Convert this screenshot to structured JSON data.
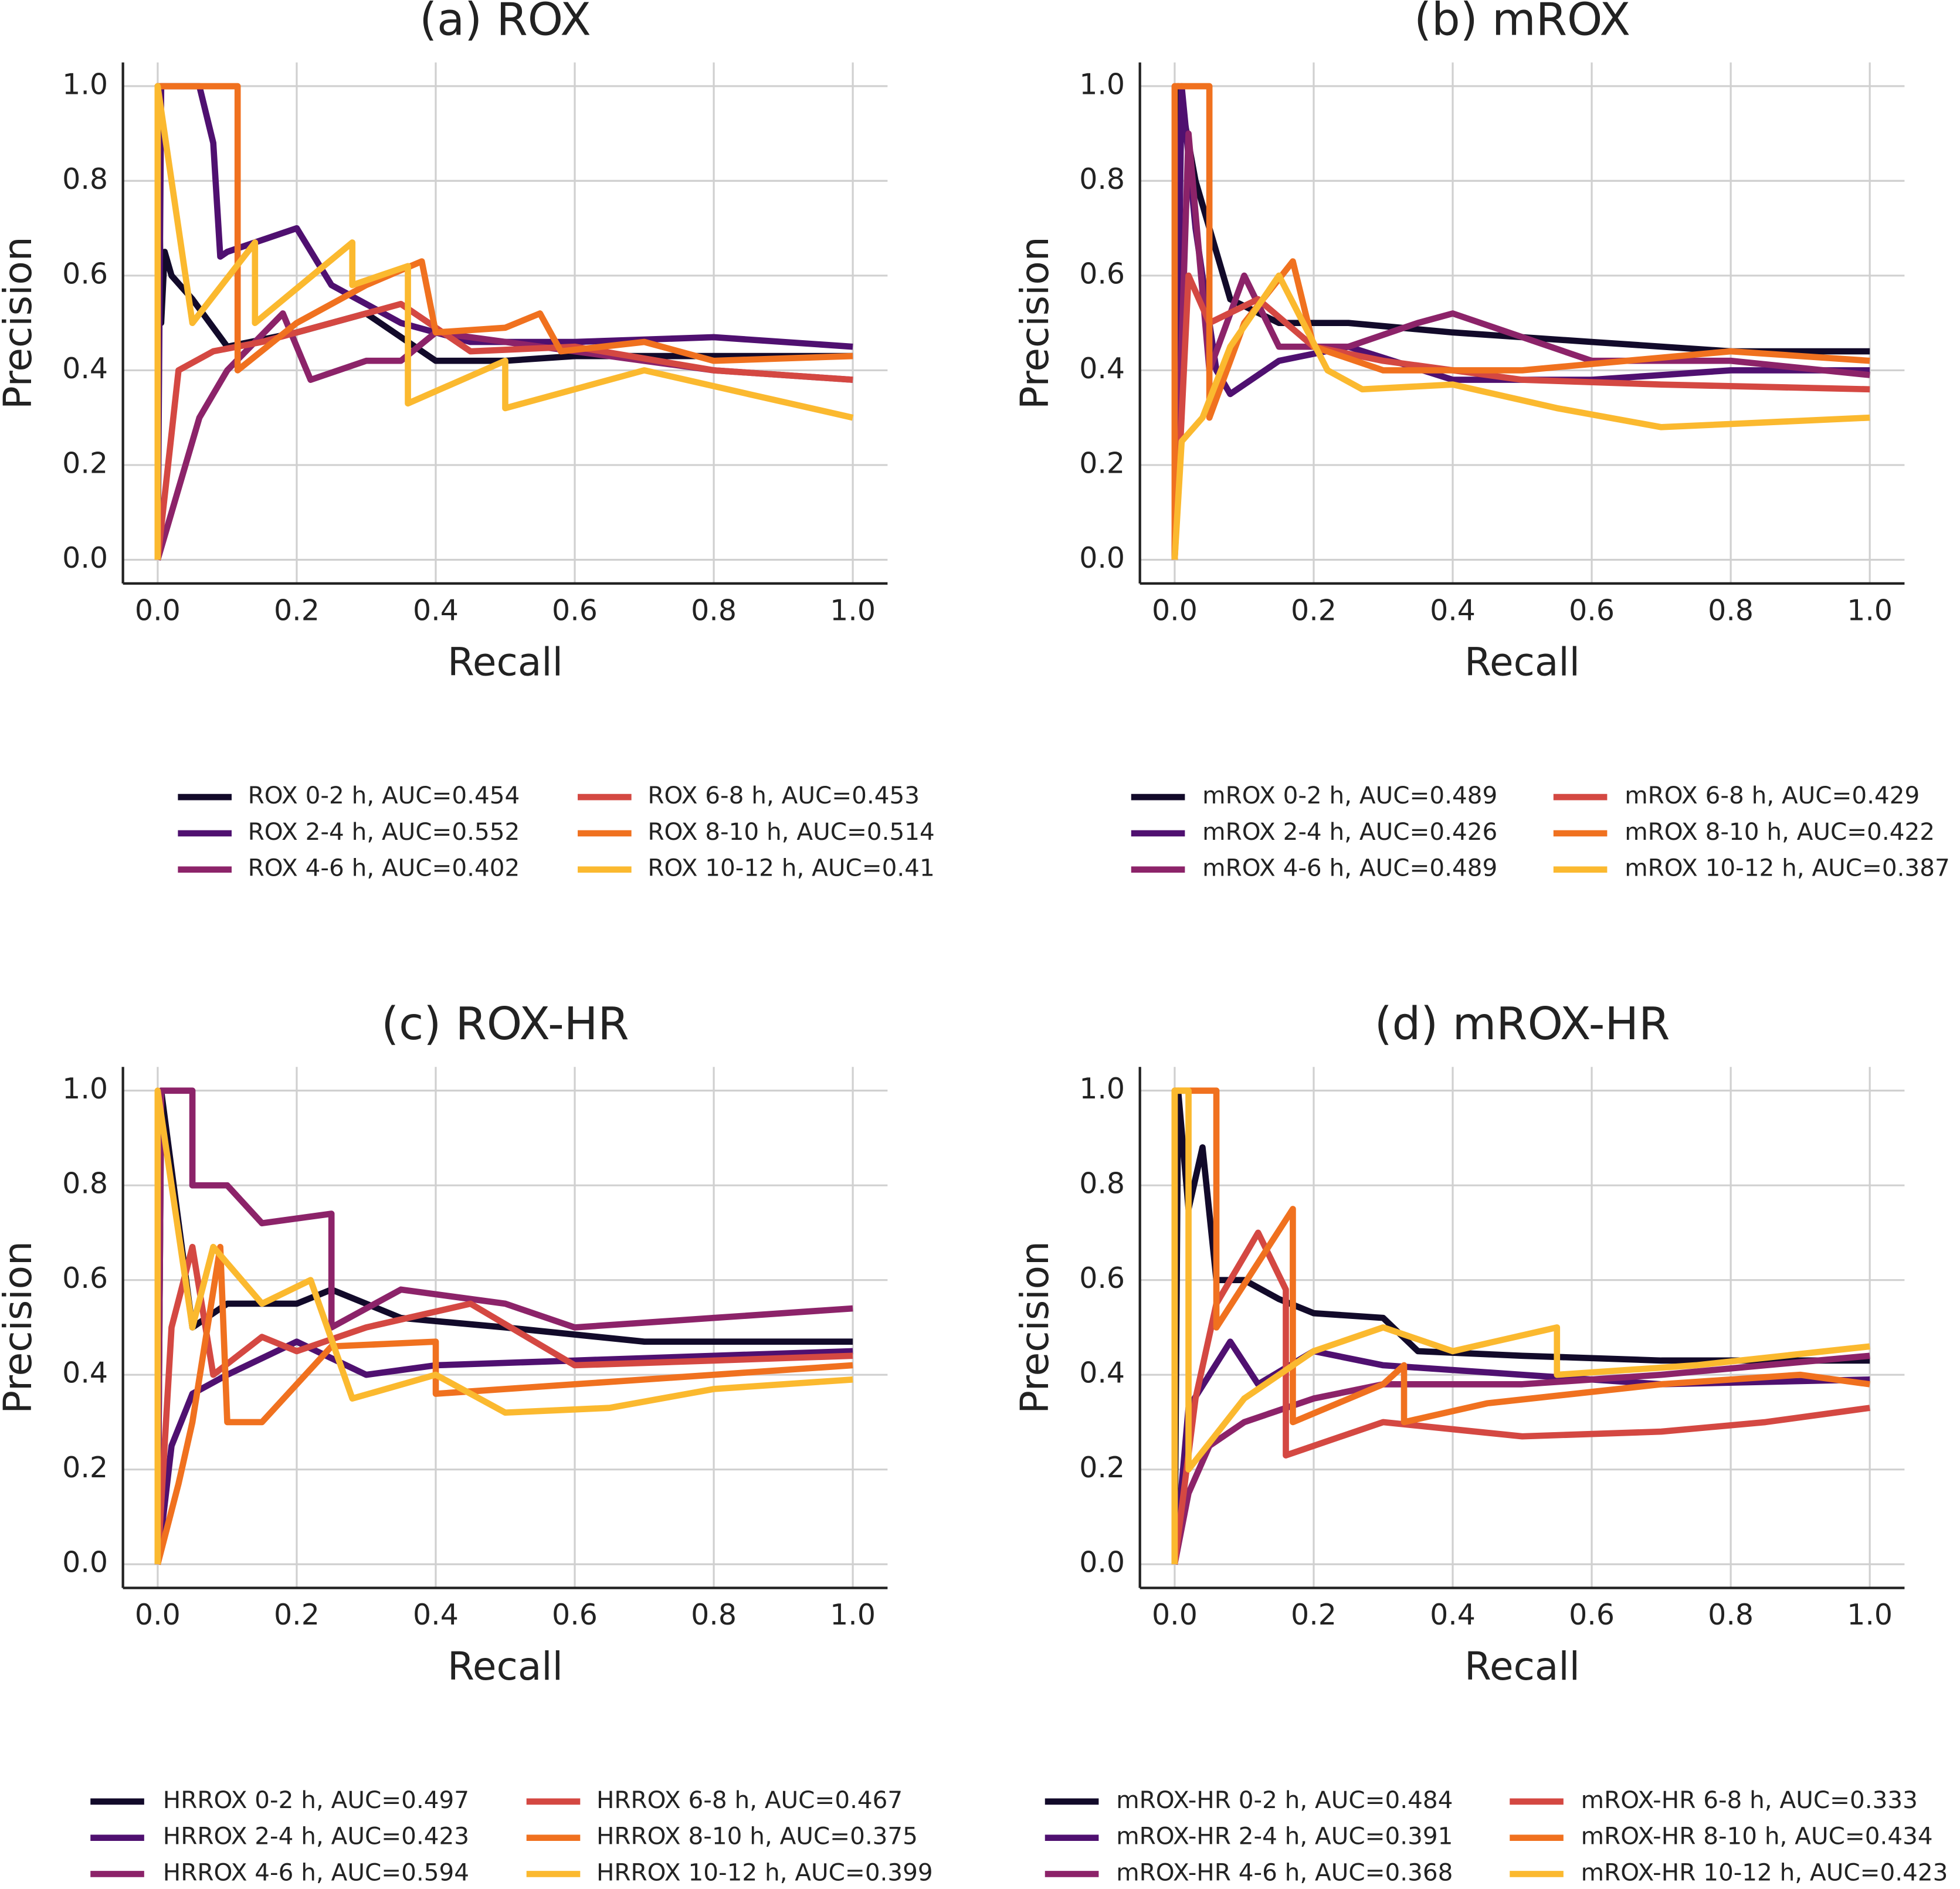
{
  "chart_data": [
    {
      "type": "line",
      "title": "(a) ROX",
      "x_label": "Recall",
      "y_label": "Precision",
      "xlim": [
        -0.05,
        1.05
      ],
      "ylim": [
        -0.05,
        1.05
      ],
      "xticks": [
        {
          "value": 0,
          "label": "0.0"
        },
        0.2,
        0.4,
        0.6,
        0.8,
        {
          "value": 1,
          "label": "1.0"
        }
      ],
      "yticks": [
        {
          "value": 0,
          "label": "0.0"
        },
        0.2,
        0.4,
        0.6,
        0.8,
        {
          "value": 1,
          "label": "1.0"
        }
      ],
      "grid": true,
      "series": [
        {
          "name": "ROX 0-2 h, AUC=0.454",
          "color": "#120a2a",
          "x": [
            0,
            0,
            0.005,
            0.01,
            0.02,
            0.05,
            0.1,
            0.2,
            0.3,
            0.4,
            0.5,
            0.6,
            0.8,
            1.0
          ],
          "values": [
            0,
            1.0,
            0.5,
            0.65,
            0.6,
            0.55,
            0.45,
            0.48,
            0.52,
            0.42,
            0.42,
            0.43,
            0.43,
            0.43
          ]
        },
        {
          "name": "ROX 2-4 h, AUC=0.552",
          "color": "#4f1070",
          "x": [
            0,
            0.005,
            0.06,
            0.08,
            0.09,
            0.1,
            0.2,
            0.25,
            0.35,
            0.45,
            0.6,
            0.8,
            1.0
          ],
          "values": [
            0,
            1.0,
            1.0,
            0.88,
            0.64,
            0.65,
            0.7,
            0.58,
            0.5,
            0.46,
            0.46,
            0.47,
            0.45
          ]
        },
        {
          "name": "ROX 4-6 h, AUC=0.402",
          "color": "#8c2369",
          "x": [
            0,
            0.06,
            0.1,
            0.18,
            0.22,
            0.3,
            0.35,
            0.4,
            0.6,
            0.8,
            1.0
          ],
          "values": [
            0,
            0.3,
            0.4,
            0.52,
            0.38,
            0.42,
            0.42,
            0.48,
            0.44,
            0.4,
            0.38
          ]
        },
        {
          "name": "ROX 6-8 h, AUC=0.453",
          "color": "#d44842",
          "x": [
            0,
            0.03,
            0.08,
            0.15,
            0.25,
            0.35,
            0.45,
            0.6,
            0.8,
            1.0
          ],
          "values": [
            0,
            0.4,
            0.44,
            0.46,
            0.5,
            0.54,
            0.44,
            0.45,
            0.4,
            0.38
          ]
        },
        {
          "name": "ROX 8-10 h, AUC=0.514",
          "color": "#f0711f",
          "x": [
            0,
            0,
            0.115,
            0.115,
            0.2,
            0.3,
            0.38,
            0.4,
            0.5,
            0.55,
            0.58,
            0.7,
            0.8,
            1.0
          ],
          "values": [
            0,
            1.0,
            1.0,
            0.4,
            0.5,
            0.58,
            0.63,
            0.48,
            0.49,
            0.52,
            0.44,
            0.46,
            0.42,
            0.43
          ]
        },
        {
          "name": "ROX 10-12 h, AUC=0.41",
          "color": "#fbb92f",
          "x": [
            0,
            0,
            0.05,
            0.14,
            0.14,
            0.28,
            0.28,
            0.36,
            0.36,
            0.5,
            0.5,
            0.7,
            0.85,
            1.0
          ],
          "values": [
            0,
            1.0,
            0.5,
            0.67,
            0.5,
            0.67,
            0.58,
            0.62,
            0.33,
            0.42,
            0.32,
            0.4,
            0.35,
            0.3
          ]
        }
      ]
    },
    {
      "type": "line",
      "title": "(b) mROX",
      "x_label": "Recall",
      "y_label": "Precision",
      "xlim": [
        -0.05,
        1.05
      ],
      "ylim": [
        -0.05,
        1.05
      ],
      "xticks": [
        {
          "value": 0,
          "label": "0.0"
        },
        0.2,
        0.4,
        0.6,
        0.8,
        {
          "value": 1,
          "label": "1.0"
        }
      ],
      "yticks": [
        {
          "value": 0,
          "label": "0.0"
        },
        0.2,
        0.4,
        0.6,
        0.8,
        {
          "value": 1,
          "label": "1.0"
        }
      ],
      "grid": true,
      "series": [
        {
          "name": "mROX 0-2 h, AUC=0.489",
          "color": "#120a2a",
          "x": [
            0,
            0.005,
            0.03,
            0.08,
            0.15,
            0.25,
            0.4,
            0.6,
            0.8,
            1.0
          ],
          "values": [
            0,
            1.0,
            0.8,
            0.55,
            0.5,
            0.5,
            0.48,
            0.46,
            0.44,
            0.44
          ]
        },
        {
          "name": "mROX 2-4 h, AUC=0.426",
          "color": "#4f1070",
          "x": [
            0,
            0.01,
            0.03,
            0.06,
            0.08,
            0.15,
            0.25,
            0.4,
            0.6,
            0.8,
            1.0
          ],
          "values": [
            0,
            1.0,
            0.7,
            0.4,
            0.35,
            0.42,
            0.45,
            0.38,
            0.38,
            0.4,
            0.4
          ]
        },
        {
          "name": "mROX 4-6 h, AUC=0.489",
          "color": "#8c2369",
          "x": [
            0,
            0.02,
            0.05,
            0.1,
            0.15,
            0.25,
            0.35,
            0.4,
            0.6,
            0.8,
            1.0
          ],
          "values": [
            0,
            0.9,
            0.4,
            0.6,
            0.45,
            0.45,
            0.5,
            0.52,
            0.42,
            0.42,
            0.39
          ]
        },
        {
          "name": "mROX 6-8 h, AUC=0.429",
          "color": "#d44842",
          "x": [
            0,
            0.02,
            0.05,
            0.12,
            0.2,
            0.3,
            0.5,
            0.7,
            1.0
          ],
          "values": [
            0,
            0.6,
            0.5,
            0.55,
            0.45,
            0.42,
            0.38,
            0.37,
            0.36
          ]
        },
        {
          "name": "mROX 8-10 h, AUC=0.422",
          "color": "#f0711f",
          "x": [
            0,
            0,
            0.05,
            0.05,
            0.1,
            0.17,
            0.2,
            0.3,
            0.5,
            0.8,
            1.0
          ],
          "values": [
            0,
            1.0,
            1.0,
            0.3,
            0.5,
            0.63,
            0.45,
            0.4,
            0.4,
            0.44,
            0.42
          ]
        },
        {
          "name": "mROX 10-12 h, AUC=0.387",
          "color": "#fbb92f",
          "x": [
            0,
            0.01,
            0.04,
            0.08,
            0.15,
            0.22,
            0.27,
            0.4,
            0.55,
            0.7,
            1.0
          ],
          "values": [
            0,
            0.25,
            0.3,
            0.45,
            0.6,
            0.4,
            0.36,
            0.37,
            0.32,
            0.28,
            0.3
          ]
        }
      ]
    },
    {
      "type": "line",
      "title": "(c) ROX-HR",
      "x_label": "Recall",
      "y_label": "Precision",
      "xlim": [
        -0.05,
        1.05
      ],
      "ylim": [
        -0.05,
        1.05
      ],
      "xticks": [
        {
          "value": 0,
          "label": "0.0"
        },
        0.2,
        0.4,
        0.6,
        0.8,
        {
          "value": 1,
          "label": "1.0"
        }
      ],
      "yticks": [
        {
          "value": 0,
          "label": "0.0"
        },
        0.2,
        0.4,
        0.6,
        0.8,
        {
          "value": 1,
          "label": "1.0"
        }
      ],
      "grid": true,
      "series": [
        {
          "name": "HRROX 0-2 h, AUC=0.497",
          "color": "#120a2a",
          "x": [
            0,
            0.005,
            0.05,
            0.1,
            0.2,
            0.25,
            0.35,
            0.5,
            0.7,
            1.0
          ],
          "values": [
            0,
            1.0,
            0.5,
            0.55,
            0.55,
            0.58,
            0.52,
            0.5,
            0.47,
            0.47
          ]
        },
        {
          "name": "HRROX 2-4 h, AUC=0.423",
          "color": "#4f1070",
          "x": [
            0,
            0.02,
            0.05,
            0.1,
            0.2,
            0.3,
            0.4,
            0.6,
            0.8,
            1.0
          ],
          "values": [
            0,
            0.25,
            0.36,
            0.4,
            0.47,
            0.4,
            0.42,
            0.43,
            0.44,
            0.45
          ]
        },
        {
          "name": "HRROX 4-6 h, AUC=0.594",
          "color": "#8c2369",
          "x": [
            0,
            0.005,
            0.05,
            0.05,
            0.1,
            0.15,
            0.25,
            0.25,
            0.35,
            0.5,
            0.6,
            0.8,
            1.0
          ],
          "values": [
            0,
            1.0,
            1.0,
            0.8,
            0.8,
            0.72,
            0.74,
            0.5,
            0.58,
            0.55,
            0.5,
            0.52,
            0.54
          ]
        },
        {
          "name": "HRROX 6-8 h, AUC=0.467",
          "color": "#d44842",
          "x": [
            0,
            0.02,
            0.05,
            0.08,
            0.15,
            0.2,
            0.3,
            0.45,
            0.6,
            0.8,
            1.0
          ],
          "values": [
            0,
            0.5,
            0.67,
            0.4,
            0.48,
            0.45,
            0.5,
            0.55,
            0.42,
            0.43,
            0.44
          ]
        },
        {
          "name": "HRROX 8-10 h, AUC=0.375",
          "color": "#f0711f",
          "x": [
            0,
            0.03,
            0.05,
            0.09,
            0.1,
            0.15,
            0.25,
            0.4,
            0.4,
            0.6,
            0.8,
            1.0
          ],
          "values": [
            0,
            0.17,
            0.3,
            0.67,
            0.3,
            0.3,
            0.46,
            0.47,
            0.36,
            0.38,
            0.4,
            0.42
          ]
        },
        {
          "name": "HRROX 10-12 h, AUC=0.399",
          "color": "#fbb92f",
          "x": [
            0,
            0,
            0.05,
            0.08,
            0.15,
            0.22,
            0.28,
            0.4,
            0.5,
            0.65,
            0.8,
            1.0
          ],
          "values": [
            0,
            1.0,
            0.5,
            0.67,
            0.55,
            0.6,
            0.35,
            0.4,
            0.32,
            0.33,
            0.37,
            0.39
          ]
        }
      ]
    },
    {
      "type": "line",
      "title": "(d) mROX-HR",
      "x_label": "Recall",
      "y_label": "Precision",
      "xlim": [
        -0.05,
        1.05
      ],
      "ylim": [
        -0.05,
        1.05
      ],
      "xticks": [
        {
          "value": 0,
          "label": "0.0"
        },
        0.2,
        0.4,
        0.6,
        0.8,
        {
          "value": 1,
          "label": "1.0"
        }
      ],
      "yticks": [
        {
          "value": 0,
          "label": "0.0"
        },
        0.2,
        0.4,
        0.6,
        0.8,
        {
          "value": 1,
          "label": "1.0"
        }
      ],
      "grid": true,
      "series": [
        {
          "name": "mROX-HR 0-2 h, AUC=0.484",
          "color": "#120a2a",
          "x": [
            0,
            0.005,
            0.02,
            0.04,
            0.06,
            0.1,
            0.15,
            0.2,
            0.3,
            0.35,
            0.5,
            0.7,
            1.0
          ],
          "values": [
            0,
            1.0,
            0.75,
            0.88,
            0.6,
            0.6,
            0.56,
            0.53,
            0.52,
            0.45,
            0.44,
            0.43,
            0.43
          ]
        },
        {
          "name": "mROX-HR 2-4 h, AUC=0.391",
          "color": "#4f1070",
          "x": [
            0,
            0.02,
            0.05,
            0.08,
            0.12,
            0.2,
            0.3,
            0.5,
            0.7,
            1.0
          ],
          "values": [
            0,
            0.33,
            0.4,
            0.47,
            0.38,
            0.45,
            0.42,
            0.4,
            0.38,
            0.39
          ]
        },
        {
          "name": "mROX-HR 4-6 h, AUC=0.368",
          "color": "#8c2369",
          "x": [
            0,
            0.02,
            0.05,
            0.1,
            0.2,
            0.3,
            0.5,
            0.7,
            0.85,
            1.0
          ],
          "values": [
            0,
            0.15,
            0.25,
            0.3,
            0.35,
            0.38,
            0.38,
            0.4,
            0.42,
            0.44
          ]
        },
        {
          "name": "mROX-HR 6-8 h, AUC=0.333",
          "color": "#d44842",
          "x": [
            0,
            0.03,
            0.06,
            0.12,
            0.16,
            0.16,
            0.3,
            0.5,
            0.7,
            0.85,
            1.0
          ],
          "values": [
            0,
            0.35,
            0.55,
            0.7,
            0.58,
            0.23,
            0.3,
            0.27,
            0.28,
            0.3,
            0.33
          ]
        },
        {
          "name": "mROX-HR 8-10 h, AUC=0.434",
          "color": "#f0711f",
          "x": [
            0,
            0,
            0.06,
            0.06,
            0.17,
            0.17,
            0.3,
            0.33,
            0.33,
            0.45,
            0.7,
            0.9,
            1.0
          ],
          "values": [
            0,
            1.0,
            1.0,
            0.5,
            0.75,
            0.3,
            0.38,
            0.42,
            0.3,
            0.34,
            0.38,
            0.4,
            0.38
          ]
        },
        {
          "name": "mROX-HR 10-12 h, AUC=0.423",
          "color": "#fbb92f",
          "x": [
            0,
            0,
            0.02,
            0.02,
            0.1,
            0.2,
            0.3,
            0.4,
            0.55,
            0.55,
            0.75,
            1.0
          ],
          "values": [
            0,
            1.0,
            1.0,
            0.2,
            0.35,
            0.45,
            0.5,
            0.45,
            0.5,
            0.4,
            0.42,
            0.46
          ]
        }
      ]
    }
  ]
}
